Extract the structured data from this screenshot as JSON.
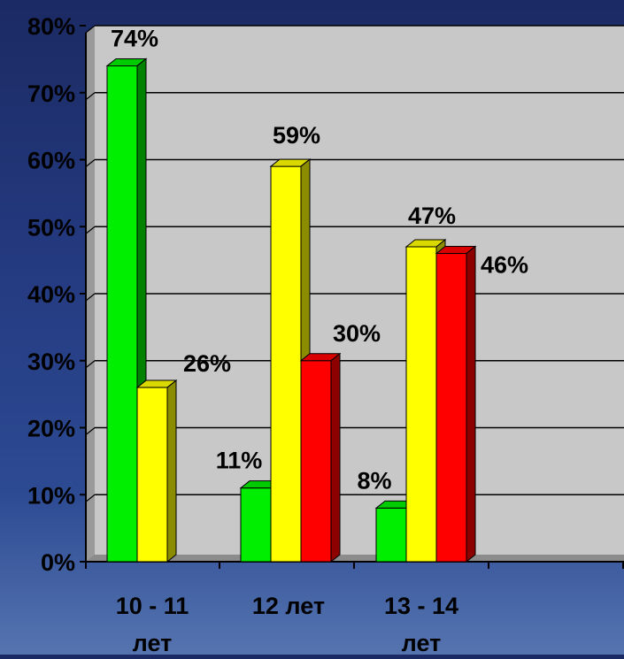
{
  "chart_data": {
    "type": "bar",
    "bar_style": "3d",
    "categories": [
      {
        "lines": [
          "10 - 11",
          "лет"
        ]
      },
      {
        "lines": [
          "12 лет"
        ]
      },
      {
        "lines": [
          "13 - 14",
          "лет"
        ]
      }
    ],
    "series": [
      {
        "color": "#00ee00",
        "values": [
          74,
          11,
          8
        ],
        "labels": [
          "74%",
          "11%",
          "8%"
        ]
      },
      {
        "color": "#ffff00",
        "values": [
          26,
          59,
          47
        ],
        "labels": [
          "26%",
          "59%",
          "47%"
        ]
      },
      {
        "color": "#ff0000",
        "values": [
          null,
          30,
          46
        ],
        "labels": [
          "",
          "30%",
          "46%"
        ]
      }
    ],
    "ylim": [
      0,
      80
    ],
    "yticks": [
      0,
      10,
      20,
      30,
      40,
      50,
      60,
      70,
      80
    ],
    "ytick_labels": [
      "0%",
      "10%",
      "20%",
      "30%",
      "40%",
      "50%",
      "60%",
      "70%",
      "80%"
    ],
    "grid": true,
    "plot_background": "#c8c8c8",
    "label_color": "#000000",
    "axis_label_color": "#000000"
  }
}
